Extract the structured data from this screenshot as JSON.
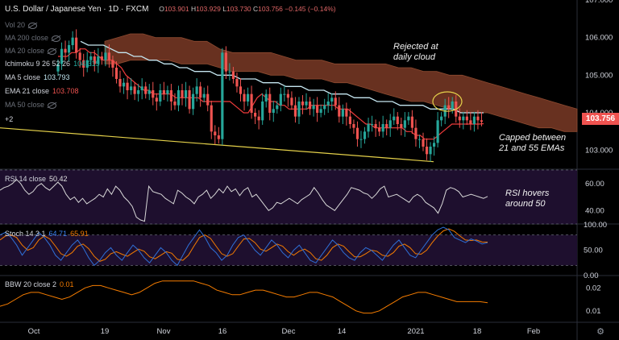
{
  "header": {
    "title": "U.S. Dollar / Japanese Yen · 1D · FXCM",
    "ohlc": {
      "o_label": "O",
      "o": "103.901",
      "h_label": "H",
      "h": "103.929",
      "l_label": "L",
      "l": "103.730",
      "c_label": "C",
      "c": "103.756",
      "chg": "−0.145 (−0.14%)"
    }
  },
  "legend": {
    "vol": "Vol 20",
    "ma200": "MA 200 close",
    "ma20": "MA 20 close",
    "ichimoku": "Ichimoku 9 26 52 26",
    "ichimoku_val": "104.315",
    "ma5": "MA 5 close",
    "ma5_val": "103.793",
    "ema21": "EMA 21 close",
    "ema21_val": "103.708",
    "ma50": "MA 50 close",
    "plus2": "+2"
  },
  "annotations": {
    "rejected": "Rejected at\ndaily cloud",
    "capped": "Capped between\n21 and 55 EMAs",
    "rsi": "RSI hovers\naround 50"
  },
  "current_price": "103.756",
  "colors": {
    "up": "#26a69a",
    "down": "#ef5350",
    "ema21": "#ef3b3b",
    "ma55": "#c5e6f0",
    "cloud": "#7a3a26",
    "trend": "#e5d14a",
    "rsi": "#d8d8d8",
    "stoch_k": "#2f6fd6",
    "stoch_d": "#f57c00",
    "bbw": "#f57c00",
    "ellipse": "#e5d14a"
  },
  "chart_data": [
    {
      "type": "candlestick",
      "pane": "price",
      "ylim": [
        102.5,
        107.0
      ],
      "y_ticks": [
        "107.000",
        "106.000",
        "105.000",
        "104.000",
        "103.000"
      ],
      "x_ticks": [
        "Oct",
        "19",
        "Nov",
        "16",
        "Dec",
        "14",
        "2021",
        "18",
        "Feb"
      ],
      "close": [
        105.3,
        105.7,
        105.6,
        105.8,
        106.0,
        105.6,
        105.4,
        105.2,
        105.4,
        105.5,
        105.3,
        105.5,
        105.4,
        105.6,
        105.4,
        105.2,
        104.9,
        104.7,
        104.8,
        104.6,
        104.7,
        104.5,
        104.6,
        104.7,
        104.5,
        104.6,
        104.4,
        104.3,
        104.6,
        104.5,
        104.6,
        104.3,
        104.2,
        104.6,
        104.4,
        104.6,
        104.1,
        104.5,
        104.7,
        104.4,
        104.5,
        104.2,
        103.5,
        103.4,
        103.3,
        105.6,
        105.1,
        105.1,
        104.9,
        104.7,
        104.5,
        104.3,
        104.5,
        104.0,
        103.9,
        103.8,
        104.3,
        104.5,
        104.0,
        104.1,
        104.2,
        104.5,
        104.5,
        104.4,
        104.2,
        103.9,
        104.3,
        104.2,
        104.3,
        104.1,
        104.2,
        104.0,
        104.1,
        104.2,
        104.3,
        104.4,
        104.2,
        103.9,
        104.1,
        103.9,
        103.7,
        103.6,
        103.3,
        103.3,
        103.5,
        103.7,
        103.7,
        103.6,
        103.5,
        103.7,
        103.6,
        103.8,
        103.9,
        103.7,
        103.6,
        103.8,
        103.9,
        103.6,
        103.3,
        103.3,
        103.1,
        102.9,
        103.1,
        103.2,
        103.8,
        103.9,
        104.2,
        104.1,
        104.3,
        103.9,
        103.8,
        103.9,
        103.8,
        103.7,
        103.9,
        103.8,
        103.76
      ],
      "ema21": [
        105.5,
        105.5,
        105.5,
        105.6,
        105.6,
        105.7,
        105.7,
        105.6,
        105.6,
        105.5,
        105.4,
        105.4,
        105.4,
        105.3,
        105.2,
        105.0,
        104.9,
        104.8,
        104.7,
        104.6,
        104.6,
        104.5,
        104.5,
        104.5,
        104.5,
        104.5,
        104.4,
        104.4,
        104.4,
        104.4,
        104.4,
        104.4,
        104.3,
        104.3,
        104.3,
        104.3,
        104.3,
        104.3,
        104.3,
        104.2,
        104.1,
        104.0,
        104.0,
        104.2,
        104.4,
        104.5,
        104.4,
        104.3,
        104.3,
        104.2,
        104.2,
        104.1,
        104.1,
        104.1,
        104.1,
        104.1,
        104.2,
        104.2,
        104.2,
        104.2,
        104.2,
        104.2,
        104.1,
        104.1,
        104.1,
        104.0,
        103.9,
        103.8,
        103.7,
        103.7,
        103.6,
        103.6,
        103.6,
        103.6,
        103.6,
        103.6,
        103.6,
        103.5,
        103.5,
        103.4,
        103.4,
        103.3,
        103.3,
        103.3,
        103.4,
        103.5,
        103.6,
        103.7,
        103.7,
        103.7,
        103.7,
        103.7,
        103.7,
        103.7,
        103.71
      ],
      "ma55": [
        105.9,
        105.8,
        105.8,
        105.8,
        105.7,
        105.6,
        105.6,
        105.5,
        105.5,
        105.4,
        105.4,
        105.3,
        105.3,
        105.2,
        105.2,
        105.1,
        105.1,
        105.1,
        105.0,
        105.0,
        105.0,
        104.9,
        104.9,
        104.9,
        104.8,
        104.8,
        104.8,
        104.7,
        104.7,
        104.7,
        104.6,
        104.6,
        104.6,
        104.5,
        104.5,
        104.5,
        104.4,
        104.4,
        104.4,
        104.3,
        104.3,
        104.3,
        104.2,
        104.2,
        104.2,
        104.2,
        104.1,
        104.1,
        104.1,
        104.1,
        104.0,
        104.0,
        104.0,
        104.0
      ],
      "cloud_top": [
        105.9,
        106.0,
        106.1,
        106.1,
        106.0,
        106.0,
        106.0,
        105.9,
        105.9,
        105.7,
        105.6,
        105.6,
        105.6,
        105.6,
        105.5,
        105.4,
        105.4,
        105.4,
        105.3,
        105.3,
        105.3,
        105.3,
        105.3,
        105.2,
        105.2,
        105.1,
        105.1,
        105.0,
        105.0,
        104.9,
        104.8,
        104.7,
        104.6,
        104.5,
        104.4,
        104.3,
        104.2,
        104.1
      ],
      "cloud_bottom": [
        105.3,
        105.3,
        105.4,
        105.4,
        105.4,
        105.4,
        105.3,
        105.3,
        105.3,
        105.2,
        105.1,
        105.1,
        105.1,
        105.0,
        105.0,
        104.9,
        104.9,
        104.9,
        104.8,
        104.8,
        104.7,
        104.6,
        104.5,
        104.4,
        104.3,
        104.3,
        104.2,
        104.1,
        104.0,
        104.0,
        104.0,
        103.9,
        103.8,
        103.7,
        103.6,
        103.6,
        103.5,
        103.5
      ],
      "trendline": [
        [
          0,
          103.6
        ],
        [
          100,
          102.7
        ]
      ]
    },
    {
      "type": "line",
      "pane": "rsi",
      "title": "RSI 14 close",
      "last": "50.42",
      "ylim": [
        30,
        70
      ],
      "y_ticks": [
        "60.00",
        "40.00"
      ],
      "levels": [
        70,
        30
      ],
      "values": [
        55,
        57,
        58,
        60,
        63,
        60,
        55,
        52,
        54,
        58,
        60,
        57,
        55,
        58,
        61,
        58,
        52,
        48,
        50,
        46,
        49,
        45,
        47,
        49,
        52,
        50,
        56,
        52,
        58,
        55,
        50,
        47,
        43,
        35,
        33,
        32,
        58,
        54,
        53,
        52,
        49,
        47,
        45,
        55,
        53,
        50,
        48,
        45,
        50,
        52,
        55,
        49,
        52,
        56,
        53,
        58,
        54,
        56,
        51,
        55,
        57,
        50,
        52,
        48,
        44,
        40,
        42,
        46,
        45,
        47,
        49,
        47,
        45,
        48,
        50,
        52,
        57,
        53,
        48,
        44,
        42,
        40,
        44,
        48,
        52,
        57,
        56,
        55,
        53,
        52,
        49,
        52,
        56,
        58,
        50,
        51,
        52,
        50,
        48,
        46,
        50,
        52,
        50,
        46,
        44,
        42,
        38,
        45,
        55,
        57,
        56,
        54,
        50,
        51,
        52,
        51,
        50,
        49,
        50.42
      ]
    },
    {
      "type": "line",
      "pane": "stoch",
      "title": "Stoch 14 3 1",
      "k_last": "64.71",
      "d_last": "65.91",
      "ylim": [
        0,
        100
      ],
      "y_ticks": [
        "100.00",
        "50.00",
        "0.00"
      ],
      "levels": [
        80,
        20
      ],
      "k": [
        80,
        85,
        75,
        60,
        40,
        55,
        70,
        85,
        75,
        60,
        40,
        30,
        45,
        60,
        70,
        55,
        35,
        20,
        30,
        45,
        55,
        40,
        30,
        45,
        60,
        50,
        35,
        25,
        40,
        55,
        45,
        30,
        20,
        40,
        60,
        75,
        90,
        75,
        55,
        45,
        30,
        40,
        60,
        75,
        80,
        65,
        50,
        40,
        55,
        70,
        60,
        45,
        35,
        50,
        60,
        45,
        30,
        25,
        40,
        55,
        70,
        60,
        45,
        35,
        30,
        45,
        55,
        50,
        40,
        30,
        45,
        60,
        70,
        55,
        40,
        35,
        50,
        65,
        80,
        90,
        95,
        90,
        75,
        70,
        65,
        72,
        68,
        62,
        64.71
      ],
      "d": [
        70,
        78,
        80,
        75,
        60,
        50,
        55,
        70,
        78,
        72,
        58,
        43,
        38,
        45,
        58,
        62,
        53,
        38,
        28,
        32,
        43,
        47,
        42,
        38,
        45,
        52,
        48,
        37,
        33,
        40,
        47,
        44,
        32,
        30,
        40,
        58,
        75,
        80,
        73,
        58,
        43,
        38,
        43,
        58,
        72,
        73,
        65,
        52,
        48,
        55,
        62,
        58,
        47,
        40,
        48,
        52,
        45,
        33,
        30,
        40,
        55,
        62,
        58,
        47,
        37,
        37,
        43,
        50,
        48,
        40,
        38,
        45,
        58,
        62,
        55,
        43,
        42,
        50,
        65,
        78,
        88,
        92,
        87,
        78,
        70,
        69,
        70,
        66,
        65.91
      ]
    },
    {
      "type": "line",
      "pane": "bbw",
      "title": "BBW 20 close 2",
      "last": "0.01",
      "ylim": [
        0.005,
        0.025
      ],
      "y_ticks": [
        "0.02",
        "0.01"
      ],
      "values": [
        0.012,
        0.013,
        0.015,
        0.017,
        0.018,
        0.018,
        0.017,
        0.016,
        0.015,
        0.016,
        0.018,
        0.02,
        0.021,
        0.021,
        0.02,
        0.019,
        0.018,
        0.017,
        0.018,
        0.02,
        0.022,
        0.023,
        0.023,
        0.023,
        0.023,
        0.023,
        0.022,
        0.021,
        0.019,
        0.018,
        0.017,
        0.017,
        0.018,
        0.019,
        0.019,
        0.018,
        0.017,
        0.016,
        0.016,
        0.017,
        0.018,
        0.018,
        0.017,
        0.016,
        0.014,
        0.012,
        0.01,
        0.009,
        0.009,
        0.01,
        0.012,
        0.014,
        0.016,
        0.017,
        0.018,
        0.018,
        0.017,
        0.016,
        0.015,
        0.014,
        0.014,
        0.014,
        0.014,
        0.0135
      ]
    }
  ]
}
